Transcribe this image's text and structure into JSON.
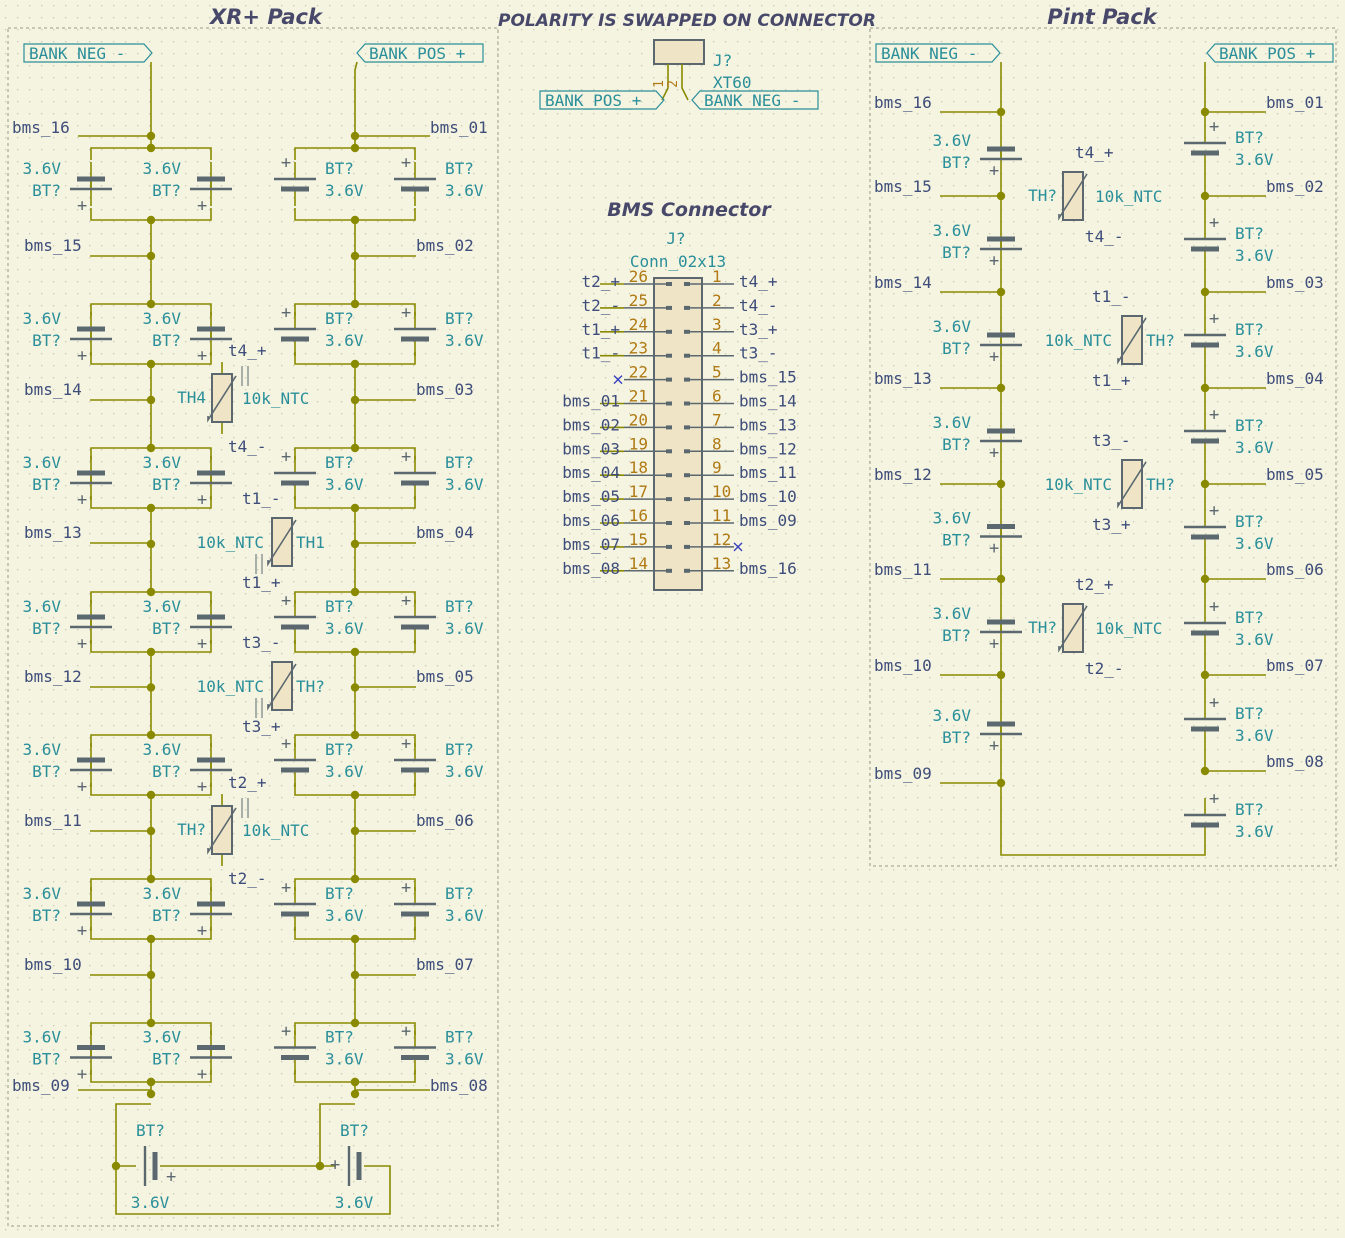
{
  "titles": {
    "xr": "XR+ Pack",
    "polarity": "POLARITY IS SWAPPED ON CONNECTOR",
    "bms": "BMS Connector",
    "pint": "Pint Pack"
  },
  "labels": {
    "bank_neg": "BANK_NEG_-",
    "bank_pos": "BANK_POS_+",
    "cell_ref": "BT?",
    "cell_val": "3.6V",
    "ntc_val": "10k_NTC",
    "th_ref": "TH?",
    "th4_ref": "TH4",
    "th1_ref": "TH1"
  },
  "xt60": {
    "ref": "J?",
    "value": "XT60",
    "pin1": "1",
    "pin2": "2",
    "left_label": "BANK_POS_+",
    "right_label": "BANK_NEG_-"
  },
  "bms_connector": {
    "ref": "J?",
    "value": "Conn_02x13",
    "left_pins": [
      {
        "num": "26",
        "net": "t2_+"
      },
      {
        "num": "25",
        "net": "t2_-"
      },
      {
        "num": "24",
        "net": "t1_+"
      },
      {
        "num": "23",
        "net": "t1_-"
      },
      {
        "num": "22",
        "net": ""
      },
      {
        "num": "21",
        "net": "bms_01"
      },
      {
        "num": "20",
        "net": "bms_02"
      },
      {
        "num": "19",
        "net": "bms_03"
      },
      {
        "num": "18",
        "net": "bms_04"
      },
      {
        "num": "17",
        "net": "bms_05"
      },
      {
        "num": "16",
        "net": "bms_06"
      },
      {
        "num": "15",
        "net": "bms_07"
      },
      {
        "num": "14",
        "net": "bms_08"
      }
    ],
    "right_pins": [
      {
        "num": "1",
        "net": "t4_+"
      },
      {
        "num": "2",
        "net": "t4_-"
      },
      {
        "num": "3",
        "net": "t3_+"
      },
      {
        "num": "4",
        "net": "t3_-"
      },
      {
        "num": "5",
        "net": "bms_15"
      },
      {
        "num": "6",
        "net": "bms_14"
      },
      {
        "num": "7",
        "net": "bms_13"
      },
      {
        "num": "8",
        "net": "bms_12"
      },
      {
        "num": "9",
        "net": "bms_11"
      },
      {
        "num": "10",
        "net": "bms_10"
      },
      {
        "num": "11",
        "net": "bms_09"
      },
      {
        "num": "12",
        "net": ""
      },
      {
        "num": "13",
        "net": "bms_16"
      }
    ]
  },
  "xr_nets": {
    "left": [
      "bms_16",
      "bms_15",
      "bms_14",
      "bms_13",
      "bms_12",
      "bms_11",
      "bms_10",
      "bms_09"
    ],
    "right": [
      "bms_01",
      "bms_02",
      "bms_03",
      "bms_04",
      "bms_05",
      "bms_06",
      "bms_07",
      "bms_08"
    ]
  },
  "xr_thermistors": [
    {
      "ref": "TH4",
      "value": "10k_NTC",
      "net_plus": "t4_+",
      "net_minus": "t4_-"
    },
    {
      "ref": "TH1",
      "value": "10k_NTC",
      "net_plus": "t1_+",
      "net_minus": "t1_-"
    },
    {
      "ref": "TH?",
      "value": "10k_NTC",
      "net_plus": "t3_+",
      "net_minus": "t3_-"
    },
    {
      "ref": "TH?",
      "value": "10k_NTC",
      "net_plus": "t2_+",
      "net_minus": "t2_-"
    }
  ],
  "pint_nets": {
    "left": [
      "bms_16",
      "bms_15",
      "bms_14",
      "bms_13",
      "bms_12",
      "bms_11",
      "bms_10",
      "bms_09"
    ],
    "right": [
      "bms_01",
      "bms_02",
      "bms_03",
      "bms_04",
      "bms_05",
      "bms_06",
      "bms_07",
      "bms_08"
    ]
  },
  "pint_thermistors": [
    {
      "ref": "TH?",
      "value": "10k_NTC",
      "net_plus": "t4_+",
      "net_minus": "t4_-"
    },
    {
      "ref": "TH?",
      "value": "10k_NTC",
      "net_plus": "t1_+",
      "net_minus": "t1_-"
    },
    {
      "ref": "TH?",
      "value": "10k_NTC",
      "net_plus": "t3_+",
      "net_minus": "t3_-"
    },
    {
      "ref": "TH?",
      "value": "10k_NTC",
      "net_plus": "t2_+",
      "net_minus": "t2_-"
    }
  ],
  "colors": {
    "background": "#f5f4e1",
    "grid_dot": "#c9c8b4",
    "wire": "#8a8a00",
    "junction": "#8a8a00",
    "component": "#5c6870",
    "component_fill": "#efe5c6",
    "reference": "#2a8f9a",
    "value": "#2a8f9a",
    "net_label": "#2a8f9a",
    "net_text": "#3e4d7a",
    "pin_number": "#b07a14",
    "sheet_border": "#9a9a86",
    "title": "#48486a",
    "no_connect": "#3840c0"
  }
}
